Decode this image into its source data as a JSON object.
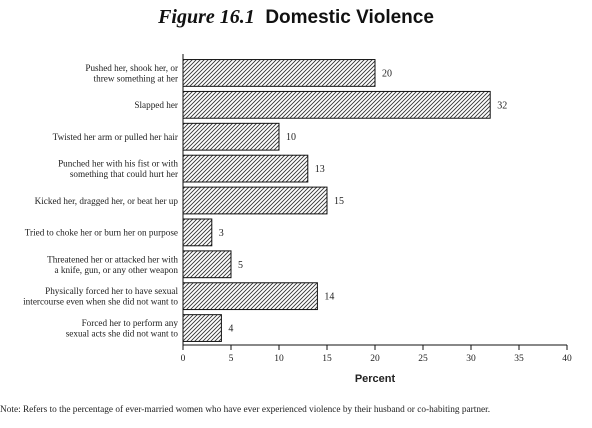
{
  "title": {
    "figure_number": "Figure 16.1",
    "text": "Domestic Violence"
  },
  "chart_data": {
    "type": "bar",
    "orientation": "horizontal",
    "categories": [
      [
        "Pushed her, shook her, or",
        "threw something at her"
      ],
      [
        "Slapped her"
      ],
      [
        "Twisted her arm or pulled her hair"
      ],
      [
        "Punched her with his fist or with",
        "something that could hurt her"
      ],
      [
        "Kicked her, dragged her, or beat her up"
      ],
      [
        "Tried to choke her or burn her on purpose"
      ],
      [
        "Threatened her or attacked her with",
        "a knife, gun, or any other weapon"
      ],
      [
        "Physically forced her to have sexual",
        "intercourse even when she did not want to"
      ],
      [
        "Forced her to perform any",
        "sexual acts she did not want to"
      ]
    ],
    "values": [
      20,
      32,
      10,
      13,
      15,
      3,
      5,
      14,
      4
    ],
    "xlabel": "Percent",
    "xlim": [
      0,
      40
    ],
    "xticks": [
      0,
      5,
      10,
      15,
      20,
      25,
      30,
      35,
      40
    ],
    "bar_pattern": "diagonal-hatch",
    "grid": false
  },
  "note": "Note: Refers to the percentage of ever-married women who have ever experienced violence by their husband or co-habiting partner."
}
